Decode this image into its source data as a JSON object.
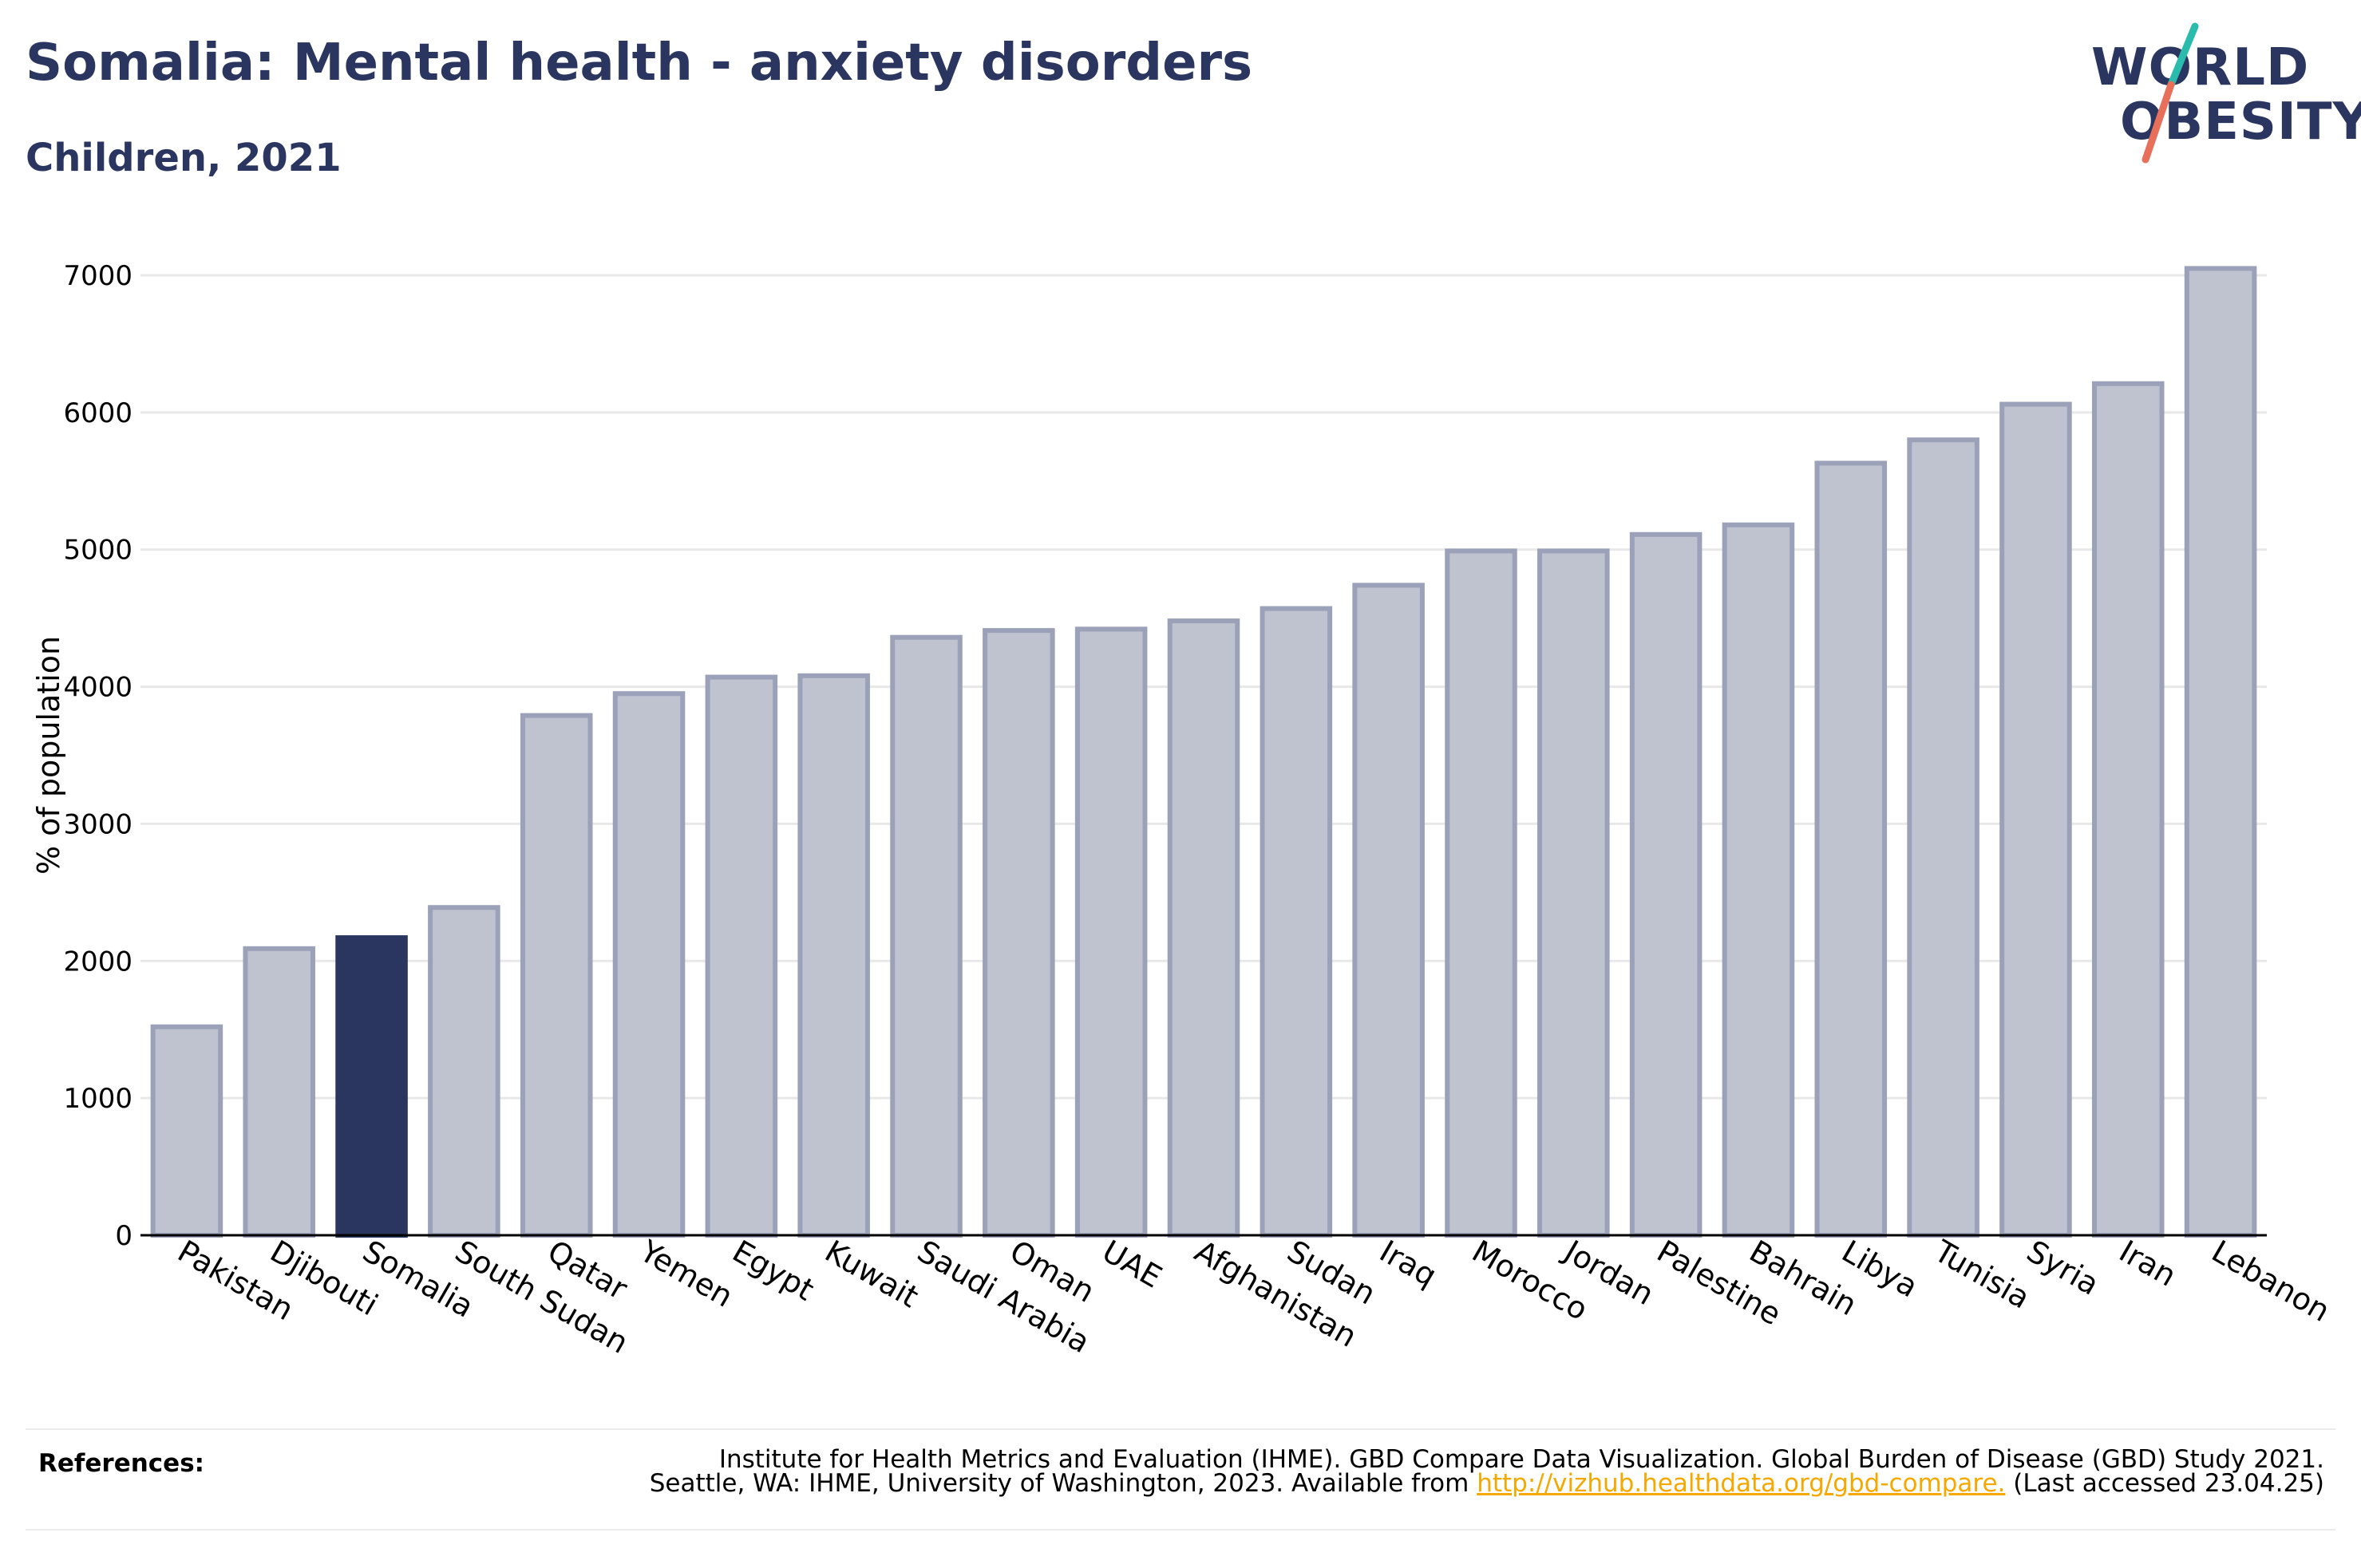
{
  "header": {
    "title": "Somalia: Mental health - anxiety disorders",
    "subtitle": "Children, 2021"
  },
  "logo": {
    "line1": "WORLD",
    "line2": "OBESITY",
    "colors": {
      "text": "#2b3660",
      "slash_top": "#2bbbad",
      "slash_bottom": "#e8705a"
    }
  },
  "colors": {
    "highlight_bar": "#2b3660",
    "bar_fill": "#bfc2cf",
    "bar_stroke": "#9ba1b8",
    "grid": "#e8e8e8"
  },
  "chart_data": {
    "type": "bar",
    "ylabel": "% of population",
    "xlabel": "",
    "ylim": [
      0,
      7000
    ],
    "yticks": [
      0,
      1000,
      2000,
      3000,
      4000,
      5000,
      6000,
      7000
    ],
    "grid": true,
    "highlight": "Somalia",
    "categories": [
      "Pakistan",
      "Djibouti",
      "Somalia",
      "South Sudan",
      "Qatar",
      "Yemen",
      "Egypt",
      "Kuwait",
      "Saudi Arabia",
      "Oman",
      "UAE",
      "Afghanistan",
      "Sudan",
      "Iraq",
      "Morocco",
      "Jordan",
      "Palestine",
      "Bahrain",
      "Libya",
      "Tunisia",
      "Syria",
      "Iran",
      "Lebanon"
    ],
    "values": [
      1520,
      2090,
      2170,
      2390,
      3790,
      3950,
      4070,
      4080,
      4360,
      4410,
      4420,
      4480,
      4570,
      4740,
      4990,
      4990,
      5110,
      5180,
      5630,
      5800,
      6060,
      6210,
      7050
    ]
  },
  "references": {
    "label": "References:",
    "line1": "Institute for Health Metrics and Evaluation (IHME). GBD Compare Data Visualization. Global Burden of Disease (GBD) Study 2021.",
    "line2_pre": "Seattle, WA: IHME, University of Washington, 2023. Available from ",
    "link": "http://vizhub.healthdata.org/gbd-compare.",
    "line2_post": " (Last accessed 23.04.25)"
  }
}
